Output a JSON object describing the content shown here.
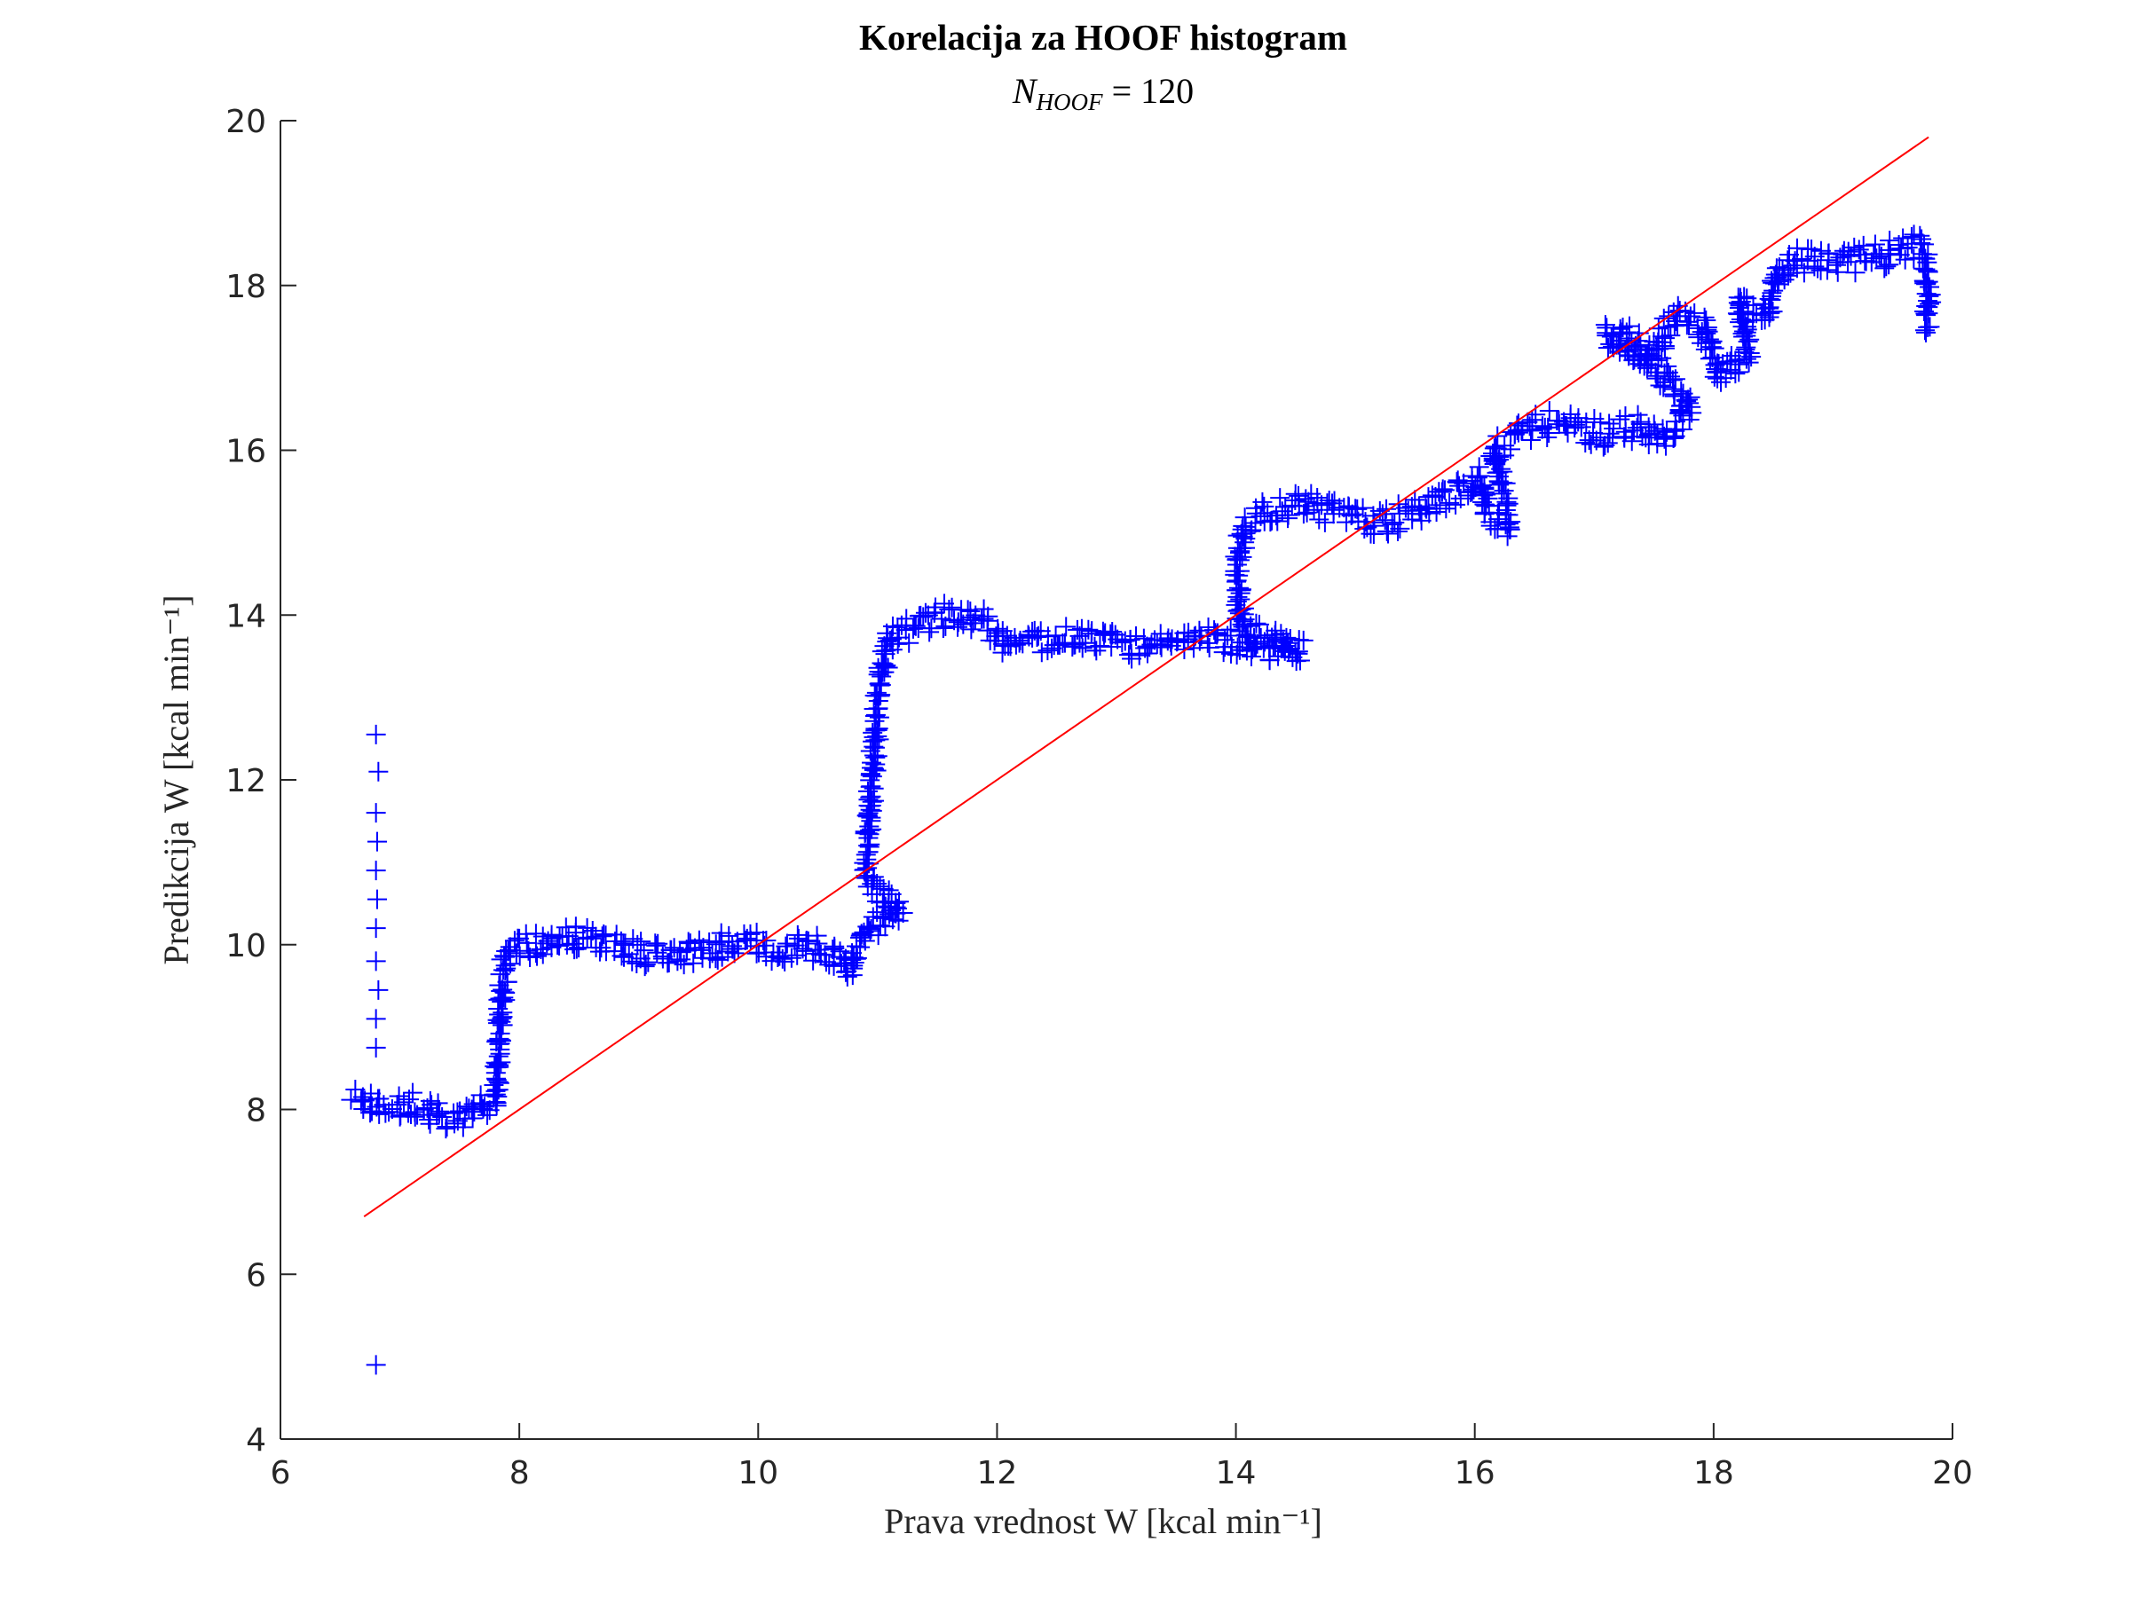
{
  "chart_data": {
    "type": "scatter",
    "title": "Korelacija za HOOF histogram",
    "subtitle": "N_HOOF = 120",
    "subtitle_parts": {
      "base": "N",
      "sub": "HOOF",
      "rest": " = 120"
    },
    "xlabel": "Prava vrednost W [kcal min⁻¹]",
    "ylabel": "Predikcija W [kcal min⁻¹]",
    "xlim": [
      6,
      20
    ],
    "ylim": [
      4,
      20
    ],
    "xticks": [
      6,
      8,
      10,
      12,
      14,
      16,
      18,
      20
    ],
    "yticks": [
      4,
      6,
      8,
      10,
      12,
      14,
      16,
      18,
      20
    ],
    "grid": false,
    "box": "left-bottom axes only",
    "marker": "+",
    "colors": {
      "points": "#0000ff",
      "fit_line": "#ff0000",
      "axes": "#262626"
    },
    "series": [
      {
        "marker": "+",
        "color": "#0000ff",
        "trend": [
          [
            6.62,
            8.1
          ],
          [
            6.8,
            8.05
          ],
          [
            6.95,
            8.0
          ],
          [
            7.1,
            8.05
          ],
          [
            7.3,
            7.95
          ],
          [
            7.5,
            7.9
          ],
          [
            7.65,
            8.0
          ],
          [
            7.8,
            8.05
          ],
          [
            7.85,
            9.4
          ],
          [
            7.9,
            9.9
          ],
          [
            8.1,
            10.0
          ],
          [
            8.4,
            10.1
          ],
          [
            8.7,
            10.0
          ],
          [
            9.0,
            9.9
          ],
          [
            9.3,
            9.85
          ],
          [
            9.6,
            9.95
          ],
          [
            9.9,
            10.05
          ],
          [
            10.2,
            9.9
          ],
          [
            10.4,
            10.0
          ],
          [
            10.6,
            9.85
          ],
          [
            10.75,
            9.7
          ],
          [
            10.9,
            10.2
          ],
          [
            11.2,
            10.4
          ],
          [
            10.9,
            10.8
          ],
          [
            10.95,
            12.0
          ],
          [
            11.0,
            13.0
          ],
          [
            11.1,
            13.7
          ],
          [
            11.3,
            13.85
          ],
          [
            11.6,
            14.0
          ],
          [
            11.9,
            13.9
          ],
          [
            12.1,
            13.65
          ],
          [
            12.4,
            13.7
          ],
          [
            12.7,
            13.75
          ],
          [
            13.0,
            13.65
          ],
          [
            13.3,
            13.6
          ],
          [
            13.6,
            13.75
          ],
          [
            13.9,
            13.7
          ],
          [
            14.2,
            13.6
          ],
          [
            14.55,
            13.6
          ],
          [
            14.05,
            13.8
          ],
          [
            14.0,
            14.6
          ],
          [
            14.1,
            15.1
          ],
          [
            14.3,
            15.25
          ],
          [
            14.6,
            15.35
          ],
          [
            14.9,
            15.2
          ],
          [
            15.2,
            15.1
          ],
          [
            15.5,
            15.25
          ],
          [
            15.8,
            15.45
          ],
          [
            16.05,
            15.7
          ],
          [
            16.1,
            15.2
          ],
          [
            16.3,
            15.1
          ],
          [
            16.15,
            16.0
          ],
          [
            16.4,
            16.25
          ],
          [
            16.7,
            16.35
          ],
          [
            16.9,
            16.25
          ],
          [
            17.1,
            16.2
          ],
          [
            17.4,
            16.3
          ],
          [
            17.6,
            16.1
          ],
          [
            17.8,
            16.55
          ],
          [
            17.3,
            17.35
          ],
          [
            17.1,
            17.4
          ],
          [
            17.45,
            17.1
          ],
          [
            17.7,
            17.65
          ],
          [
            17.9,
            17.5
          ],
          [
            18.05,
            16.9
          ],
          [
            18.3,
            17.2
          ],
          [
            18.2,
            17.8
          ],
          [
            18.45,
            17.6
          ],
          [
            18.55,
            18.2
          ],
          [
            18.8,
            18.35
          ],
          [
            19.1,
            18.3
          ],
          [
            19.4,
            18.35
          ],
          [
            19.6,
            18.45
          ],
          [
            19.75,
            18.5
          ],
          [
            19.8,
            17.9
          ],
          [
            19.78,
            17.5
          ]
        ],
        "outliers": [
          [
            6.8,
            12.55
          ],
          [
            6.82,
            12.1
          ],
          [
            6.8,
            11.6
          ],
          [
            6.81,
            11.25
          ],
          [
            6.8,
            10.9
          ],
          [
            6.81,
            10.55
          ],
          [
            6.8,
            10.2
          ],
          [
            6.8,
            9.8
          ],
          [
            6.82,
            9.45
          ],
          [
            6.8,
            9.1
          ],
          [
            6.8,
            8.75
          ],
          [
            6.8,
            4.9
          ]
        ]
      }
    ],
    "fit_line": {
      "x": [
        6.7,
        19.8
      ],
      "y": [
        6.7,
        19.8
      ]
    }
  }
}
